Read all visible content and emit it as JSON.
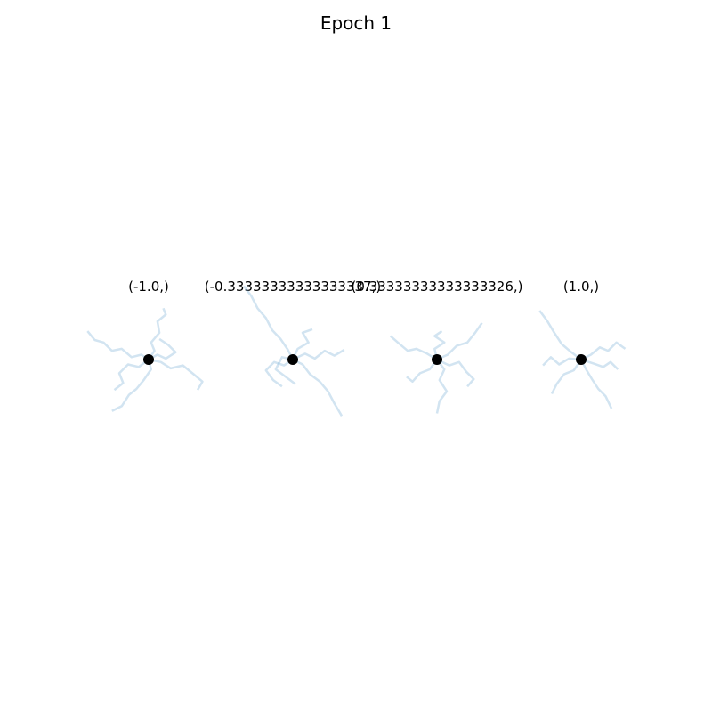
{
  "figure": {
    "title": "Epoch 1"
  },
  "chart_data": {
    "type": "line",
    "title": "Epoch 1",
    "style": {
      "trace_color": "#7fb1d8",
      "trace_opacity": 0.35,
      "center_color": "#000000"
    },
    "axis_limits": {
      "xlim": [
        -1.0,
        1.0
      ],
      "ylim": [
        -1.0,
        1.0
      ]
    },
    "panels": [
      {
        "title": "(-1.0,)",
        "center": [
          0,
          0
        ],
        "traces": [
          [
            [
              0,
              0
            ],
            [
              0.12,
              0.18
            ],
            [
              0.05,
              0.35
            ],
            [
              0.22,
              0.55
            ],
            [
              0.18,
              0.78
            ],
            [
              0.35,
              0.92
            ],
            [
              0.3,
              1.05
            ]
          ],
          [
            [
              0,
              0
            ],
            [
              -0.15,
              0.1
            ],
            [
              -0.35,
              0.05
            ],
            [
              -0.55,
              0.22
            ],
            [
              -0.75,
              0.18
            ],
            [
              -0.92,
              0.35
            ],
            [
              -1.1,
              0.4
            ],
            [
              -1.25,
              0.58
            ]
          ],
          [
            [
              0,
              0
            ],
            [
              0.05,
              -0.2
            ],
            [
              -0.1,
              -0.42
            ],
            [
              -0.25,
              -0.6
            ],
            [
              -0.4,
              -0.72
            ],
            [
              -0.55,
              -0.95
            ],
            [
              -0.75,
              -1.05
            ]
          ],
          [
            [
              0,
              0
            ],
            [
              0.25,
              -0.05
            ],
            [
              0.45,
              -0.18
            ],
            [
              0.7,
              -0.12
            ],
            [
              0.92,
              -0.3
            ],
            [
              1.1,
              -0.45
            ],
            [
              1.0,
              -0.62
            ]
          ],
          [
            [
              0,
              0
            ],
            [
              0.18,
              0.1
            ],
            [
              0.35,
              0.02
            ],
            [
              0.55,
              0.15
            ],
            [
              0.4,
              0.3
            ],
            [
              0.22,
              0.42
            ]
          ],
          [
            [
              0,
              0
            ],
            [
              -0.2,
              -0.15
            ],
            [
              -0.42,
              -0.1
            ],
            [
              -0.6,
              -0.28
            ],
            [
              -0.52,
              -0.48
            ],
            [
              -0.7,
              -0.62
            ]
          ]
        ]
      },
      {
        "title": "(-0.33333333333333337,)",
        "center": [
          0,
          0
        ],
        "traces": [
          [
            [
              0,
              0
            ],
            [
              -0.1,
              0.2
            ],
            [
              -0.25,
              0.42
            ],
            [
              -0.42,
              0.6
            ],
            [
              -0.55,
              0.85
            ],
            [
              -0.72,
              1.05
            ],
            [
              -0.85,
              1.3
            ],
            [
              -1.0,
              1.5
            ]
          ],
          [
            [
              0,
              0
            ],
            [
              0.2,
              -0.1
            ],
            [
              0.35,
              -0.3
            ],
            [
              0.55,
              -0.45
            ],
            [
              0.72,
              -0.65
            ],
            [
              0.85,
              -0.9
            ],
            [
              1.0,
              -1.15
            ]
          ],
          [
            [
              0,
              0
            ],
            [
              0.25,
              0.12
            ],
            [
              0.45,
              0.02
            ],
            [
              0.65,
              0.18
            ],
            [
              0.85,
              0.08
            ],
            [
              1.05,
              0.2
            ]
          ],
          [
            [
              0,
              0
            ],
            [
              -0.18,
              -0.12
            ],
            [
              -0.38,
              -0.05
            ],
            [
              -0.55,
              -0.22
            ],
            [
              -0.4,
              -0.42
            ],
            [
              -0.22,
              -0.55
            ]
          ],
          [
            [
              0,
              0
            ],
            [
              0.1,
              0.22
            ],
            [
              0.32,
              0.35
            ],
            [
              0.2,
              0.55
            ],
            [
              0.4,
              0.62
            ]
          ],
          [
            [
              0,
              0
            ],
            [
              -0.22,
              0.05
            ],
            [
              -0.35,
              -0.2
            ],
            [
              -0.15,
              -0.35
            ],
            [
              0.05,
              -0.5
            ]
          ]
        ]
      },
      {
        "title": "(0.33333333333333326,)",
        "center": [
          0,
          0
        ],
        "traces": [
          [
            [
              0,
              0
            ],
            [
              -0.2,
              0.12
            ],
            [
              -0.42,
              0.22
            ],
            [
              -0.6,
              0.18
            ],
            [
              -0.8,
              0.35
            ],
            [
              -0.95,
              0.48
            ]
          ],
          [
            [
              0,
              0
            ],
            [
              0.15,
              -0.2
            ],
            [
              0.05,
              -0.42
            ],
            [
              0.2,
              -0.65
            ],
            [
              0.05,
              -0.85
            ],
            [
              0.0,
              -1.1
            ]
          ],
          [
            [
              0,
              0
            ],
            [
              0.22,
              0.1
            ],
            [
              0.4,
              0.28
            ],
            [
              0.62,
              0.35
            ],
            [
              0.78,
              0.55
            ],
            [
              0.92,
              0.75
            ]
          ],
          [
            [
              0,
              0
            ],
            [
              0.25,
              -0.12
            ],
            [
              0.45,
              -0.05
            ],
            [
              0.6,
              -0.25
            ],
            [
              0.75,
              -0.4
            ],
            [
              0.62,
              -0.55
            ]
          ],
          [
            [
              0,
              0
            ],
            [
              -0.15,
              -0.2
            ],
            [
              -0.35,
              -0.28
            ],
            [
              -0.5,
              -0.45
            ],
            [
              -0.62,
              -0.35
            ]
          ],
          [
            [
              0,
              0
            ],
            [
              -0.05,
              0.22
            ],
            [
              0.15,
              0.35
            ],
            [
              -0.05,
              0.48
            ],
            [
              0.1,
              0.58
            ]
          ]
        ]
      },
      {
        "title": "(1.0,)",
        "center": [
          0,
          0
        ],
        "traces": [
          [
            [
              0,
              0
            ],
            [
              -0.2,
              0.15
            ],
            [
              -0.4,
              0.32
            ],
            [
              -0.55,
              0.55
            ],
            [
              -0.7,
              0.8
            ],
            [
              -0.85,
              1.0
            ]
          ],
          [
            [
              0,
              0
            ],
            [
              0.2,
              0.1
            ],
            [
              0.38,
              0.25
            ],
            [
              0.55,
              0.18
            ],
            [
              0.72,
              0.35
            ],
            [
              0.9,
              0.22
            ]
          ],
          [
            [
              0,
              0
            ],
            [
              0.1,
              -0.2
            ],
            [
              0.22,
              -0.4
            ],
            [
              0.35,
              -0.6
            ],
            [
              0.5,
              -0.75
            ],
            [
              0.62,
              -1.0
            ]
          ],
          [
            [
              0,
              0
            ],
            [
              -0.15,
              -0.22
            ],
            [
              -0.35,
              -0.3
            ],
            [
              -0.5,
              -0.5
            ],
            [
              -0.6,
              -0.7
            ]
          ],
          [
            [
              0,
              0
            ],
            [
              0.25,
              -0.08
            ],
            [
              0.45,
              -0.15
            ],
            [
              0.6,
              -0.05
            ],
            [
              0.75,
              -0.2
            ]
          ],
          [
            [
              0,
              0
            ],
            [
              -0.25,
              0.02
            ],
            [
              -0.45,
              -0.1
            ],
            [
              -0.62,
              0.05
            ],
            [
              -0.78,
              -0.12
            ]
          ]
        ]
      }
    ]
  }
}
